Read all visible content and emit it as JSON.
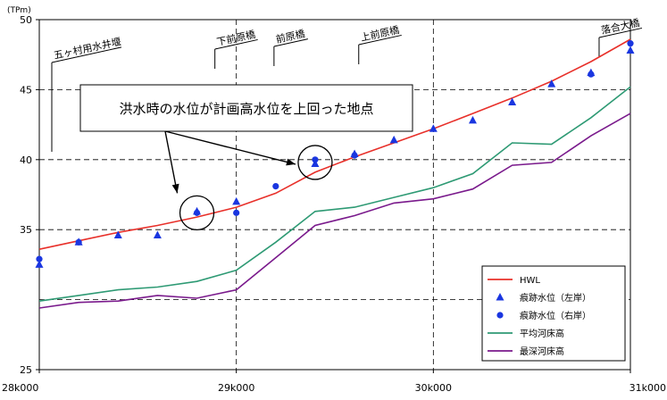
{
  "chart_data": {
    "type": "line",
    "y_unit": "(TPm)",
    "ylim": [
      25,
      50
    ],
    "y_ticks": [
      "25",
      "35",
      "40",
      "45",
      "50"
    ],
    "xlim": [
      28000,
      31000
    ],
    "x_ticks": [
      "28k000",
      "29k000",
      "30k000",
      "31k000"
    ],
    "grid": true,
    "legend_position": "bottom-right",
    "series": [
      {
        "name": "HWL",
        "kind": "line",
        "color": "#e8302a",
        "points": [
          [
            28000,
            33.6
          ],
          [
            28200,
            34.2
          ],
          [
            28400,
            34.8
          ],
          [
            28600,
            35.3
          ],
          [
            28800,
            35.9
          ],
          [
            29000,
            36.6
          ],
          [
            29200,
            37.6
          ],
          [
            29400,
            39.1
          ],
          [
            29600,
            40.2
          ],
          [
            29800,
            41.2
          ],
          [
            30000,
            42.2
          ],
          [
            30200,
            43.3
          ],
          [
            30400,
            44.4
          ],
          [
            30600,
            45.6
          ],
          [
            30800,
            47.0
          ],
          [
            31000,
            48.6
          ]
        ]
      },
      {
        "name": "痕跡水位（左岸）",
        "kind": "triangle",
        "color": "#1a36e0",
        "points": [
          [
            28000,
            32.5
          ],
          [
            28200,
            34.1
          ],
          [
            28400,
            34.6
          ],
          [
            28600,
            34.6
          ],
          [
            28800,
            36.3
          ],
          [
            29000,
            37.0
          ],
          [
            29400,
            39.7
          ],
          [
            29600,
            40.4
          ],
          [
            29800,
            41.4
          ],
          [
            30000,
            42.2
          ],
          [
            30200,
            42.8
          ],
          [
            30400,
            44.1
          ],
          [
            30600,
            45.4
          ],
          [
            30800,
            46.2
          ],
          [
            31000,
            47.8
          ]
        ]
      },
      {
        "name": "痕跡水位（右岸）",
        "kind": "circle",
        "color": "#1a36e0",
        "points": [
          [
            28000,
            32.9
          ],
          [
            28200,
            34.1
          ],
          [
            28800,
            36.2
          ],
          [
            29000,
            36.2
          ],
          [
            29200,
            38.1
          ],
          [
            29400,
            40.0
          ],
          [
            29600,
            40.3
          ],
          [
            30800,
            46.1
          ],
          [
            31000,
            48.3
          ]
        ]
      },
      {
        "name": "平均河床高",
        "kind": "line",
        "color": "#2e9a74",
        "points": [
          [
            28000,
            29.9
          ],
          [
            28200,
            30.3
          ],
          [
            28400,
            30.7
          ],
          [
            28600,
            30.9
          ],
          [
            28800,
            31.3
          ],
          [
            29000,
            32.1
          ],
          [
            29200,
            34.1
          ],
          [
            29400,
            36.3
          ],
          [
            29600,
            36.6
          ],
          [
            29800,
            37.3
          ],
          [
            30000,
            38.0
          ],
          [
            30200,
            39.0
          ],
          [
            30400,
            41.2
          ],
          [
            30600,
            41.1
          ],
          [
            30800,
            43.0
          ],
          [
            31000,
            45.2
          ]
        ]
      },
      {
        "name": "最深河床高",
        "kind": "line",
        "color": "#7a1a8c",
        "points": [
          [
            28000,
            29.4
          ],
          [
            28200,
            29.8
          ],
          [
            28400,
            29.9
          ],
          [
            28600,
            30.3
          ],
          [
            28800,
            30.1
          ],
          [
            29000,
            30.7
          ],
          [
            29200,
            33.0
          ],
          [
            29400,
            35.3
          ],
          [
            29600,
            36.0
          ],
          [
            29800,
            36.9
          ],
          [
            30000,
            37.2
          ],
          [
            30200,
            37.9
          ],
          [
            30400,
            39.6
          ],
          [
            30600,
            39.8
          ],
          [
            30800,
            41.7
          ],
          [
            31000,
            43.3
          ]
        ]
      }
    ],
    "bridges": [
      {
        "label": "五ヶ村用水井堰",
        "x": 28000
      },
      {
        "label": "下前原橋",
        "x": 29000
      },
      {
        "label": "前原橋",
        "x": 29300
      },
      {
        "label": "上前原橋",
        "x": 29730
      },
      {
        "label": "落合大橋",
        "x": 30950
      }
    ],
    "annotation": {
      "text": "洪水時の水位が計画高水位を上回った地点",
      "targets": [
        [
          28800,
          36.2
        ],
        [
          29400,
          39.8
        ]
      ]
    }
  }
}
